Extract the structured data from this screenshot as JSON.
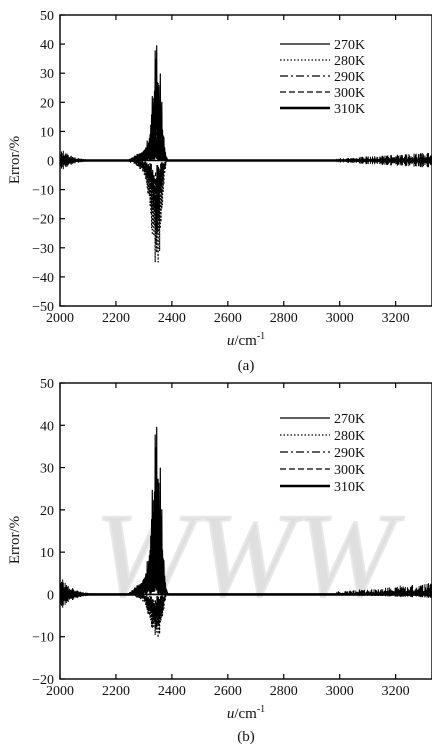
{
  "chart_data": [
    {
      "type": "line",
      "panel_label": "(a)",
      "xlabel_var": "u",
      "xlabel_unit": "/cm",
      "xlabel_sup": "-1",
      "ylabel": "Error/%",
      "xlim": [
        2000,
        3330
      ],
      "ylim": [
        -50,
        50
      ],
      "xticks": [
        2000,
        2200,
        2400,
        2600,
        2800,
        3000,
        3200
      ],
      "yticks": [
        -50,
        -40,
        -30,
        -20,
        -10,
        0,
        10,
        20,
        30,
        40,
        50
      ],
      "legend_position": "top-right",
      "grid": false,
      "series": [
        {
          "name": "270K",
          "style": "solid",
          "envelope": [
            [
              2000,
              0
            ],
            [
              2240,
              0
            ],
            [
              2260,
              1
            ],
            [
              2300,
              4
            ],
            [
              2320,
              10
            ],
            [
              2330,
              25
            ],
            [
              2340,
              40
            ],
            [
              2345,
              42
            ],
            [
              2350,
              35
            ],
            [
              2360,
              30
            ],
            [
              2370,
              10
            ],
            [
              2380,
              0
            ],
            [
              3330,
              0
            ]
          ]
        },
        {
          "name": "280K",
          "style": "dotted",
          "envelope": [
            [
              2000,
              0
            ],
            [
              2240,
              0
            ],
            [
              2260,
              -1
            ],
            [
              2300,
              -5
            ],
            [
              2320,
              -15
            ],
            [
              2330,
              -30
            ],
            [
              2340,
              -42
            ],
            [
              2345,
              -43
            ],
            [
              2350,
              -38
            ],
            [
              2360,
              -28
            ],
            [
              2370,
              -10
            ],
            [
              2380,
              0
            ],
            [
              3330,
              0
            ]
          ]
        },
        {
          "name": "290K",
          "style": "dashdot",
          "envelope": [
            [
              2000,
              0
            ],
            [
              2260,
              0
            ],
            [
              2300,
              3
            ],
            [
              2320,
              8
            ],
            [
              2335,
              20
            ],
            [
              2345,
              28
            ],
            [
              2355,
              22
            ],
            [
              2370,
              6
            ],
            [
              2380,
              0
            ],
            [
              3330,
              0
            ]
          ]
        },
        {
          "name": "300K",
          "style": "dashed",
          "envelope": [
            [
              2000,
              0
            ],
            [
              2260,
              0
            ],
            [
              2300,
              -3
            ],
            [
              2320,
              -8
            ],
            [
              2335,
              -20
            ],
            [
              2345,
              -27
            ],
            [
              2355,
              -20
            ],
            [
              2370,
              -6
            ],
            [
              2380,
              0
            ],
            [
              3330,
              0
            ]
          ]
        },
        {
          "name": "310K",
          "style": "thick",
          "envelope": [
            [
              2000,
              0
            ],
            [
              2260,
              0
            ],
            [
              2290,
              2
            ],
            [
              2310,
              4
            ],
            [
              2330,
              7
            ],
            [
              2345,
              8
            ],
            [
              2360,
              5
            ],
            [
              2375,
              2
            ],
            [
              2385,
              0
            ],
            [
              3330,
              0
            ]
          ]
        }
      ]
    },
    {
      "type": "line",
      "panel_label": "(b)",
      "xlabel_var": "u",
      "xlabel_unit": "/cm",
      "xlabel_sup": "-1",
      "ylabel": "Error/%",
      "xlim": [
        2000,
        3330
      ],
      "ylim": [
        -20,
        50
      ],
      "xticks": [
        2000,
        2200,
        2400,
        2600,
        2800,
        3000,
        3200
      ],
      "yticks": [
        -20,
        -10,
        0,
        10,
        20,
        30,
        40,
        50
      ],
      "legend_position": "top-right",
      "grid": false,
      "watermark": "WWW",
      "series": [
        {
          "name": "270K",
          "style": "solid",
          "envelope": [
            [
              2000,
              0
            ],
            [
              2240,
              0
            ],
            [
              2260,
              1
            ],
            [
              2300,
              4
            ],
            [
              2320,
              12
            ],
            [
              2330,
              28
            ],
            [
              2340,
              40
            ],
            [
              2345,
              42
            ],
            [
              2350,
              36
            ],
            [
              2360,
              30
            ],
            [
              2370,
              10
            ],
            [
              2380,
              0
            ],
            [
              3330,
              0
            ]
          ]
        },
        {
          "name": "280K",
          "style": "dotted",
          "envelope": [
            [
              2000,
              0
            ],
            [
              2260,
              0
            ],
            [
              2300,
              -2
            ],
            [
              2320,
              -6
            ],
            [
              2335,
              -11
            ],
            [
              2345,
              -12
            ],
            [
              2355,
              -10
            ],
            [
              2370,
              -4
            ],
            [
              2380,
              0
            ],
            [
              3330,
              0
            ]
          ]
        },
        {
          "name": "290K",
          "style": "dashdot",
          "envelope": [
            [
              2000,
              0
            ],
            [
              2260,
              0
            ],
            [
              2300,
              3
            ],
            [
              2320,
              10
            ],
            [
              2335,
              22
            ],
            [
              2345,
              26
            ],
            [
              2355,
              20
            ],
            [
              2370,
              5
            ],
            [
              2380,
              0
            ],
            [
              3330,
              0
            ]
          ]
        },
        {
          "name": "300K",
          "style": "dashed",
          "envelope": [
            [
              2000,
              0
            ],
            [
              2260,
              0
            ],
            [
              2300,
              -1
            ],
            [
              2320,
              -4
            ],
            [
              2335,
              -8
            ],
            [
              2345,
              -9
            ],
            [
              2355,
              -7
            ],
            [
              2370,
              -3
            ],
            [
              2380,
              0
            ],
            [
              3330,
              0
            ]
          ]
        },
        {
          "name": "310K",
          "style": "thick",
          "envelope": [
            [
              2000,
              0
            ],
            [
              2260,
              0
            ],
            [
              2290,
              2
            ],
            [
              2310,
              5
            ],
            [
              2330,
              9
            ],
            [
              2345,
              10
            ],
            [
              2360,
              7
            ],
            [
              2375,
              2
            ],
            [
              2385,
              0
            ],
            [
              3330,
              0
            ]
          ]
        }
      ]
    }
  ]
}
